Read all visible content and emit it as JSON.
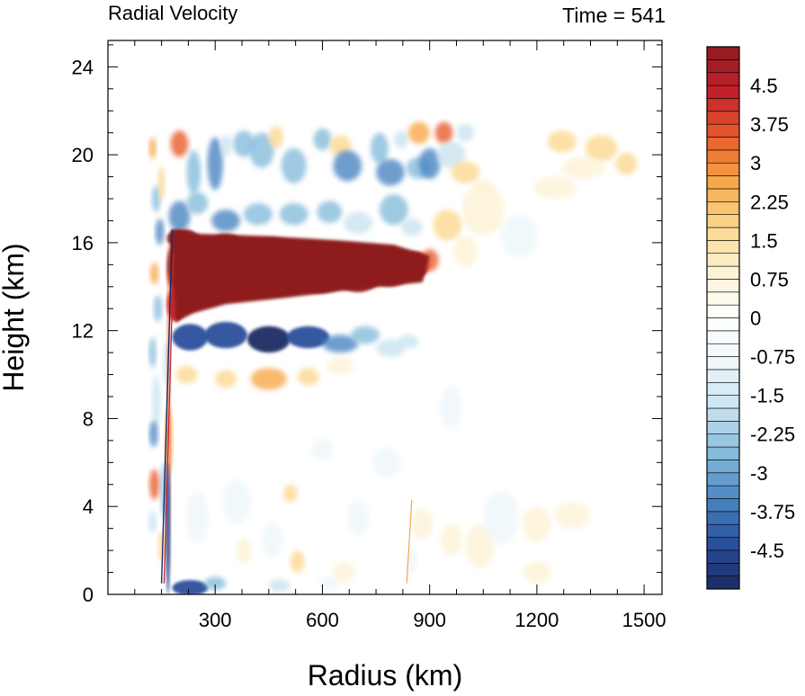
{
  "chart_data": {
    "type": "heatmap",
    "title_left": "Radial Velocity",
    "title_right": "Time = 541",
    "xlabel": "Radius (km)",
    "ylabel": "Height (km)",
    "xlim": [
      0,
      1550
    ],
    "ylim": [
      0,
      25.2
    ],
    "x_ticks": [
      300,
      600,
      900,
      1200,
      1500
    ],
    "y_ticks": [
      0,
      4,
      8,
      12,
      16,
      20,
      24
    ],
    "x_tick_labels": [
      "300",
      "600",
      "900",
      "1200",
      "1500"
    ],
    "y_tick_labels": [
      "0",
      "4",
      "8",
      "12",
      "16",
      "20",
      "24"
    ],
    "colorbar": {
      "min": -5.25,
      "max": 5.25,
      "step": 0.25,
      "label_values": [
        4.5,
        3.75,
        3,
        2.25,
        1.5,
        0.75,
        0,
        -0.75,
        -1.5,
        -2.25,
        -3,
        -3.75,
        -4.5
      ],
      "labels": [
        "4.5",
        "3.75",
        "3",
        "2.25",
        "1.5",
        "0.75",
        "0",
        "-0.75",
        "-1.5",
        "-2.25",
        "-3",
        "-3.75",
        "-4.5"
      ],
      "palette": [
        "#1a2a63",
        "#2a4f9c",
        "#4a86c2",
        "#86bbdb",
        "#c9e3f0",
        "#eef6fa",
        "#ffffff",
        "#fdf3d6",
        "#fcd890",
        "#f7a84a",
        "#e85d2b",
        "#c4202a",
        "#8e1b1f"
      ]
    },
    "features": [
      {
        "name": "outflow-jet",
        "x": [
          170,
          920
        ],
        "y": [
          12.8,
          16.5
        ],
        "value": 6
      },
      {
        "name": "lower-inflow-band",
        "x": [
          190,
          860
        ],
        "y": [
          10.8,
          12.4
        ],
        "value": -5
      },
      {
        "name": "upper-alternating-bands",
        "x": [
          120,
          1000
        ],
        "y": [
          17,
          21
        ],
        "value": -3
      },
      {
        "name": "upper-outflow-patch",
        "x": [
          1180,
          1470
        ],
        "y": [
          18.8,
          21
        ],
        "value": 2
      },
      {
        "name": "mid-outflow-band",
        "x": [
          200,
          700
        ],
        "y": [
          9.4,
          10.3
        ],
        "value": 2
      },
      {
        "name": "near-surface-inflow",
        "x": [
          175,
          300
        ],
        "y": [
          0,
          0.6
        ],
        "value": -5
      }
    ]
  }
}
